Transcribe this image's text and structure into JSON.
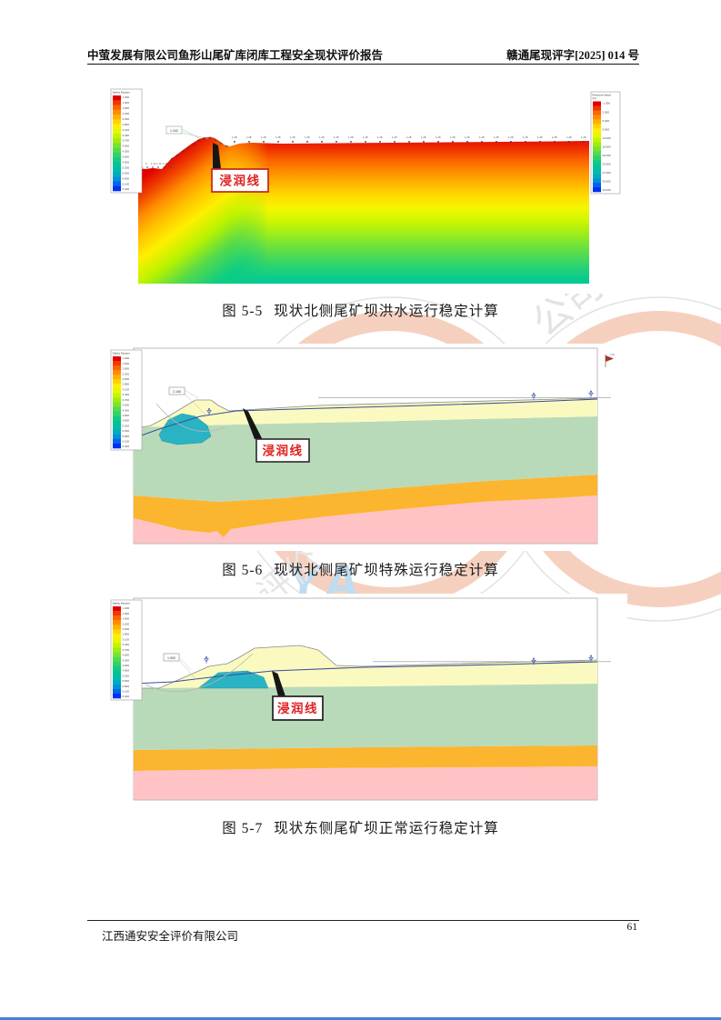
{
  "page": {
    "header_left": "中萤发展有限公司鱼形山尾矿库闭库工程安全现状评价报告",
    "header_right": "赣通尾现评字[2025] 014 号",
    "footer_company": "江西通安安全评价有限公司",
    "page_number": "61"
  },
  "legend_colors": [
    "#e00000",
    "#f03800",
    "#fb6400",
    "#ff8c00",
    "#ffb000",
    "#ffd400",
    "#fdf000",
    "#e4f800",
    "#c4f400",
    "#a0ec10",
    "#78e430",
    "#52da4e",
    "#30d268",
    "#12ca80",
    "#00c494",
    "#00bca8",
    "#00acc0",
    "#0090d8",
    "#0064ec",
    "#0030f0"
  ],
  "watermark": {
    "letters": "YA",
    "seal_text_top": "公司",
    "seal_text_bottom": "评价",
    "arc_color": "#f5c8b4",
    "letter_color": "#bedcf2"
  },
  "figures": [
    {
      "caption_label": "图 5-5",
      "caption_title": "现状北侧尾矿坝洪水运行稳定计算",
      "phreatic_label": "浸润线",
      "fos_label": "1.342",
      "surface_value": "1.28",
      "toe_values": [
        "2",
        "0",
        "1.11",
        "1.13",
        "1.15",
        "1.17"
      ],
      "legend_left": {
        "title": "Safety Factors",
        "labels": [
          "1.300",
          "1.600",
          "1.900",
          "2.200",
          "2.500",
          "2.800",
          "3.100",
          "3.400",
          "3.700",
          "4.000",
          "4.300",
          "4.600",
          "4.900",
          "5.200",
          "5.500",
          "5.800",
          "6.100",
          "6.400"
        ]
      },
      "legend_right": {
        "title": "Pressure Head",
        "unit": "(m)",
        "labels": [
          "-1.000",
          "2.500",
          "6.000",
          "9.500",
          "13.000",
          "16.500",
          "20.000",
          "23.500",
          "27.000",
          "30.500",
          "34.000"
        ]
      }
    },
    {
      "caption_label": "图 5-6",
      "caption_title": "现状北侧尾矿坝特殊运行稳定计算",
      "phreatic_label": "浸润线",
      "fos_label": "2.165",
      "flag_label": "0.00",
      "legend_left": {
        "title": "Safety Factors",
        "labels": [
          "1.300",
          "1.600",
          "1.900",
          "2.200",
          "2.500",
          "2.800",
          "3.100",
          "3.400",
          "3.700",
          "4.000",
          "4.300",
          "4.600",
          "4.900",
          "5.200",
          "5.500",
          "5.800",
          "6.100",
          "6.400"
        ]
      }
    },
    {
      "caption_label": "图 5-7",
      "caption_title": "现状东侧尾矿坝正常运行稳定计算",
      "phreatic_label": "浸润线",
      "fos_label": "1.590",
      "legend_left": {
        "title": "Safety Factors",
        "labels": [
          "1.300",
          "1.600",
          "1.900",
          "2.200",
          "2.500",
          "2.800",
          "3.100",
          "3.400",
          "3.700",
          "4.000",
          "4.300",
          "4.600",
          "4.900",
          "5.200",
          "5.500",
          "5.800",
          "6.100",
          "6.400"
        ]
      }
    }
  ]
}
